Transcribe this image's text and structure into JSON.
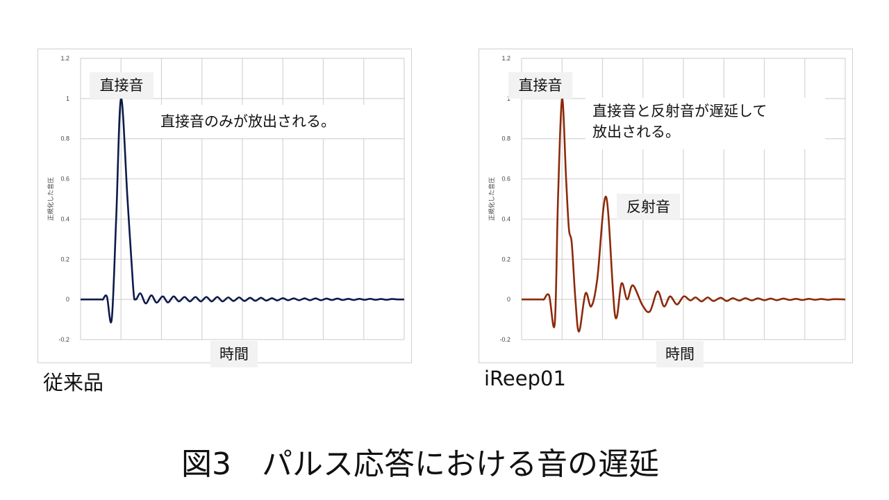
{
  "title": "図3　パルス応答における音の遅延",
  "chart_data": [
    {
      "type": "line",
      "caption": "従来品",
      "ylabel": "正規化した音圧",
      "xlabel": "時間",
      "ylim": [
        -0.2,
        1.2
      ],
      "yticks": [
        "1.2",
        "1",
        "0.8",
        "0.6",
        "0.4",
        "0.2",
        "0",
        "-0.2"
      ],
      "ytick_values": [
        1.2,
        1,
        0.8,
        0.6,
        0.4,
        0.2,
        0,
        -0.2
      ],
      "xlim": [
        0,
        8
      ],
      "grid": true,
      "color": "#0d1a4a",
      "annotations": {
        "direct": "直接音",
        "note": "直接音のみが放出される。"
      },
      "x": [
        0,
        0.5,
        0.55,
        0.65,
        0.77,
        0.88,
        1.0,
        1.16,
        1.3,
        1.36,
        1.48,
        1.61,
        1.75,
        1.88,
        2.03,
        2.16,
        2.3,
        2.43,
        2.57,
        2.7,
        2.84,
        2.97,
        3.11,
        3.24,
        3.38,
        3.51,
        3.65,
        3.78,
        3.92,
        4.05,
        4.19,
        4.32,
        4.46,
        4.59,
        4.73,
        4.86,
        5.0,
        5.13,
        5.27,
        5.4,
        5.54,
        5.67,
        5.81,
        5.94,
        6.08,
        6.21,
        6.35,
        6.48,
        6.62,
        6.75,
        6.89,
        7.02,
        7.16,
        7.29,
        7.43,
        7.56,
        7.7,
        7.83,
        8.0
      ],
      "y": [
        0,
        0,
        0,
        0.015,
        -0.1,
        0.4,
        1.0,
        0.5,
        0.06,
        0,
        0.03,
        -0.02,
        0.02,
        -0.016,
        0.015,
        -0.015,
        0.015,
        -0.01,
        0.012,
        -0.01,
        0.012,
        -0.01,
        0.012,
        -0.01,
        0.012,
        -0.01,
        0.01,
        -0.008,
        0.01,
        -0.008,
        0.008,
        -0.007,
        0.008,
        -0.006,
        0.006,
        -0.005,
        0.006,
        -0.004,
        0.005,
        -0.004,
        0.005,
        -0.004,
        0.005,
        -0.004,
        0.004,
        -0.003,
        0.004,
        -0.003,
        0.003,
        -0.003,
        0.003,
        -0.002,
        0.003,
        -0.002,
        0.002,
        -0.002,
        0.002,
        0,
        0
      ]
    },
    {
      "type": "line",
      "caption": "iReep01",
      "ylabel": "正規化した音圧",
      "xlabel": "時間",
      "ylim": [
        -0.2,
        1.2
      ],
      "yticks": [
        "1.2",
        "1",
        "0.8",
        "0.6",
        "0.4",
        "0.2",
        "0",
        "-0.2"
      ],
      "ytick_values": [
        1.2,
        1,
        0.8,
        0.6,
        0.4,
        0.2,
        0,
        -0.2
      ],
      "xlim": [
        0,
        8
      ],
      "grid": true,
      "color": "#8b2a0a",
      "annotations": {
        "direct": "直接音",
        "reflected": "反射音",
        "note_line1": "直接音と反射音が遅延して",
        "note_line2": "放出される。"
      },
      "x": [
        0,
        0.5,
        0.55,
        0.68,
        0.82,
        0.9,
        1.0,
        1.1,
        1.17,
        1.24,
        1.33,
        1.42,
        1.58,
        1.72,
        1.87,
        2.09,
        2.31,
        2.47,
        2.61,
        2.75,
        2.99,
        3.17,
        3.36,
        3.52,
        3.67,
        3.84,
        4.01,
        4.17,
        4.3,
        4.45,
        4.6,
        4.74,
        4.92,
        5.07,
        5.22,
        5.38,
        5.53,
        5.69,
        5.84,
        6.0,
        6.16,
        6.31,
        6.47,
        6.63,
        6.78,
        6.94,
        7.1,
        7.25,
        7.41,
        7.57,
        7.72,
        8.0
      ],
      "y": [
        0,
        0,
        0,
        0.02,
        -0.12,
        0.5,
        1.0,
        0.6,
        0.35,
        0.28,
        0.0,
        -0.16,
        0.03,
        -0.035,
        0.1,
        0.51,
        -0.08,
        0.08,
        0.0,
        0.07,
        -0.03,
        -0.06,
        0.04,
        -0.035,
        0.015,
        -0.025,
        0.015,
        -0.005,
        0.01,
        -0.01,
        0.01,
        -0.008,
        0.008,
        -0.008,
        0.006,
        -0.006,
        0.006,
        -0.005,
        0.005,
        -0.004,
        0.004,
        -0.004,
        0.004,
        -0.003,
        0.003,
        -0.003,
        0.003,
        -0.002,
        0.002,
        -0.002,
        0.001,
        0
      ]
    }
  ]
}
